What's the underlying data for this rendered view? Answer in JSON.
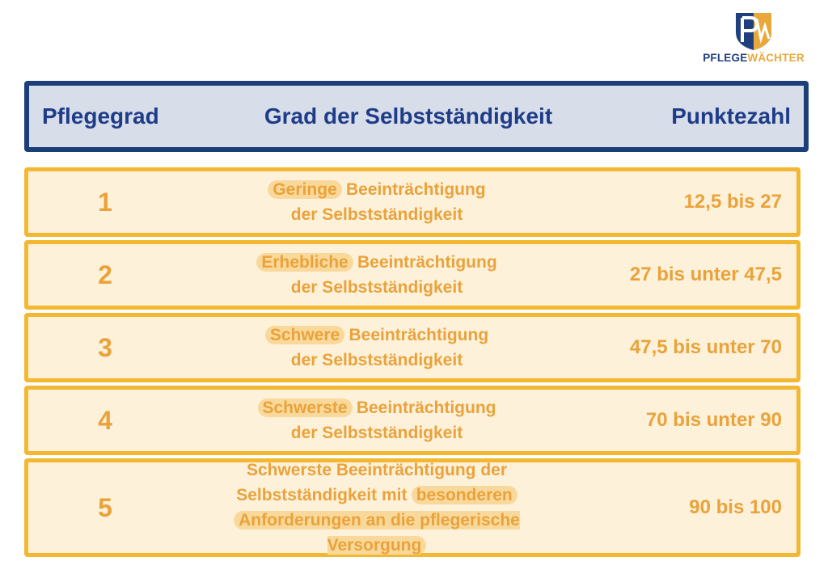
{
  "logo": {
    "brand_1": "PFLEGE",
    "brand_2": "WÄCHTER"
  },
  "table": {
    "header": [
      "Pflegegrad",
      "Grad der Selbstständigkeit",
      "Punktezahl"
    ],
    "rows": [
      {
        "grade": "1",
        "description": [
          [
            {
              "text": "Geringe",
              "highlight": true
            },
            {
              "text": "Beeinträchtigung",
              "highlight": false
            }
          ],
          [
            {
              "text": "der Selbstständigkeit",
              "highlight": false
            }
          ]
        ],
        "points": "12,5 bis 27"
      },
      {
        "grade": "2",
        "description": [
          [
            {
              "text": "Erhebliche",
              "highlight": true
            },
            {
              "text": "Beeinträchtigung",
              "highlight": false
            }
          ],
          [
            {
              "text": "der Selbstständigkeit",
              "highlight": false
            }
          ]
        ],
        "points": "27 bis unter 47,5"
      },
      {
        "grade": "3",
        "description": [
          [
            {
              "text": "Schwere",
              "highlight": true
            },
            {
              "text": "Beeinträchtigung",
              "highlight": false
            }
          ],
          [
            {
              "text": "der Selbstständigkeit",
              "highlight": false
            }
          ]
        ],
        "points": "47,5 bis unter 70"
      },
      {
        "grade": "4",
        "description": [
          [
            {
              "text": "Schwerste",
              "highlight": true
            },
            {
              "text": "Beeinträchtigung",
              "highlight": false
            }
          ],
          [
            {
              "text": "der Selbstständigkeit",
              "highlight": false
            }
          ]
        ],
        "points": "70 bis unter 90"
      },
      {
        "grade": "5",
        "description": [
          [
            {
              "text": "Schwerste Beeinträchtigung der",
              "highlight": false
            }
          ],
          [
            {
              "text": "Selbstständigkeit mit",
              "highlight": false
            },
            {
              "text": "besonderen",
              "highlight": true
            }
          ],
          [
            {
              "text": "Anforderungen an die pflegerische Versorgung",
              "highlight": true
            }
          ]
        ],
        "points": "90 bis 100"
      }
    ]
  }
}
